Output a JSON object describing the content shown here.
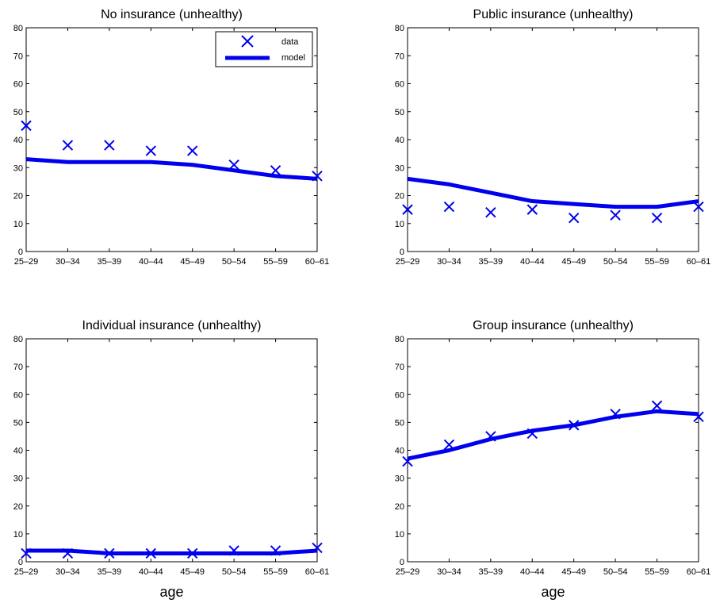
{
  "chart_data": [
    {
      "type": "line",
      "title": "No insurance (unhealthy)",
      "xlabel": "",
      "ylabel": "",
      "categories": [
        "25–29",
        "30–34",
        "35–39",
        "40–44",
        "45–49",
        "50–54",
        "55–59",
        "60–61"
      ],
      "yticks": [
        0,
        10,
        20,
        30,
        40,
        50,
        60,
        70,
        80
      ],
      "ylim": [
        0,
        80
      ],
      "grid": false,
      "legend": {
        "position": "top-right",
        "entries": [
          {
            "name": "data",
            "style": "x-marker"
          },
          {
            "name": "model",
            "style": "line"
          }
        ]
      },
      "series": [
        {
          "name": "data",
          "style": "x-marker",
          "values": [
            45,
            38,
            38,
            36,
            36,
            31,
            29,
            27
          ]
        },
        {
          "name": "model",
          "style": "line",
          "values": [
            33,
            32,
            32,
            32,
            31,
            29,
            27,
            26
          ]
        }
      ]
    },
    {
      "type": "line",
      "title": "Public insurance (unhealthy)",
      "xlabel": "",
      "ylabel": "",
      "categories": [
        "25–29",
        "30–34",
        "35–39",
        "40–44",
        "45–49",
        "50–54",
        "55–59",
        "60–61"
      ],
      "yticks": [
        0,
        10,
        20,
        30,
        40,
        50,
        60,
        70,
        80
      ],
      "ylim": [
        0,
        80
      ],
      "grid": false,
      "series": [
        {
          "name": "data",
          "style": "x-marker",
          "values": [
            15,
            16,
            14,
            15,
            12,
            13,
            12,
            16
          ]
        },
        {
          "name": "model",
          "style": "line",
          "values": [
            26,
            24,
            21,
            18,
            17,
            16,
            16,
            18
          ]
        }
      ]
    },
    {
      "type": "line",
      "title": "Individual insurance (unhealthy)",
      "xlabel": "age",
      "ylabel": "",
      "categories": [
        "25–29",
        "30–34",
        "35–39",
        "40–44",
        "45–49",
        "50–54",
        "55–59",
        "60–61"
      ],
      "yticks": [
        0,
        10,
        20,
        30,
        40,
        50,
        60,
        70,
        80
      ],
      "ylim": [
        0,
        80
      ],
      "grid": false,
      "series": [
        {
          "name": "data",
          "style": "x-marker",
          "values": [
            3,
            3,
            3,
            3,
            3,
            4,
            4,
            5
          ]
        },
        {
          "name": "model",
          "style": "line",
          "values": [
            4,
            4,
            3,
            3,
            3,
            3,
            3,
            4
          ]
        }
      ]
    },
    {
      "type": "line",
      "title": "Group insurance (unhealthy)",
      "xlabel": "age",
      "ylabel": "",
      "categories": [
        "25–29",
        "30–34",
        "35–39",
        "40–44",
        "45–49",
        "50–54",
        "55–59",
        "60–61"
      ],
      "yticks": [
        0,
        10,
        20,
        30,
        40,
        50,
        60,
        70,
        80
      ],
      "ylim": [
        0,
        80
      ],
      "grid": false,
      "series": [
        {
          "name": "data",
          "style": "x-marker",
          "values": [
            36,
            42,
            45,
            46,
            49,
            53,
            56,
            52
          ]
        },
        {
          "name": "model",
          "style": "line",
          "values": [
            37,
            40,
            44,
            47,
            49,
            52,
            54,
            53
          ]
        }
      ]
    }
  ],
  "colors": {
    "series": "#0000ee",
    "axes": "#000000",
    "background": "#ffffff"
  }
}
